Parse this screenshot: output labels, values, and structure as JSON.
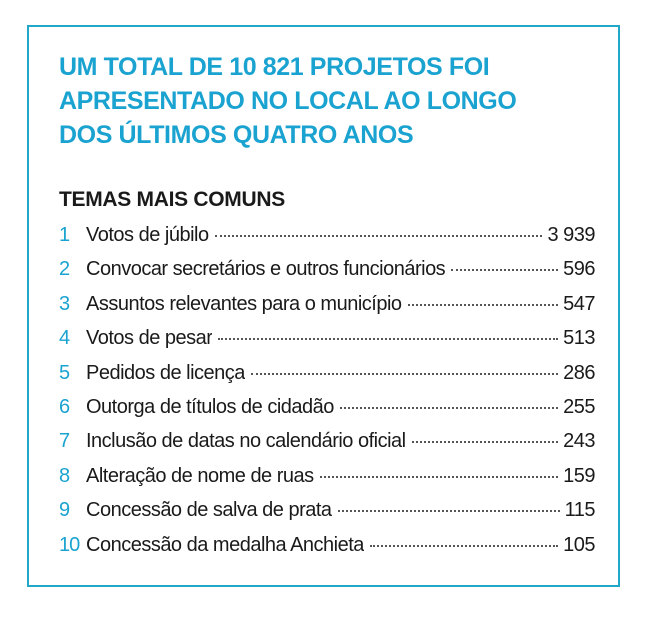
{
  "headline": {
    "line1": "UM TOTAL DE 10 821 PROJETOS FOI",
    "line2": "APRESENTADO NO LOCAL AO LONGO",
    "line3": "DOS ÚLTIMOS QUATRO ANOS"
  },
  "subtitle": "TEMAS MAIS COMUNS",
  "colors": {
    "accent": "#1aa3d0",
    "border": "#22a7c9",
    "text": "#1a1a1a"
  },
  "items": [
    {
      "rank": "1",
      "label": "Votos de júbilo",
      "value": "3 939"
    },
    {
      "rank": "2",
      "label": "Convocar secretários e outros funcionários",
      "value": "596"
    },
    {
      "rank": "3",
      "label": "Assuntos relevantes para o município",
      "value": "547"
    },
    {
      "rank": "4",
      "label": "Votos de pesar",
      "value": "513"
    },
    {
      "rank": "5",
      "label": "Pedidos de licença",
      "value": "286"
    },
    {
      "rank": "6",
      "label": "Outorga de títulos de cidadão",
      "value": "255"
    },
    {
      "rank": "7",
      "label": "Inclusão de datas no calendário oficial",
      "value": "243"
    },
    {
      "rank": "8",
      "label": "Alteração de nome de ruas",
      "value": "159"
    },
    {
      "rank": "9",
      "label": "Concessão de salva de prata",
      "value": "115"
    },
    {
      "rank": "10",
      "label": "Concessão da medalha Anchieta",
      "value": "105"
    }
  ]
}
